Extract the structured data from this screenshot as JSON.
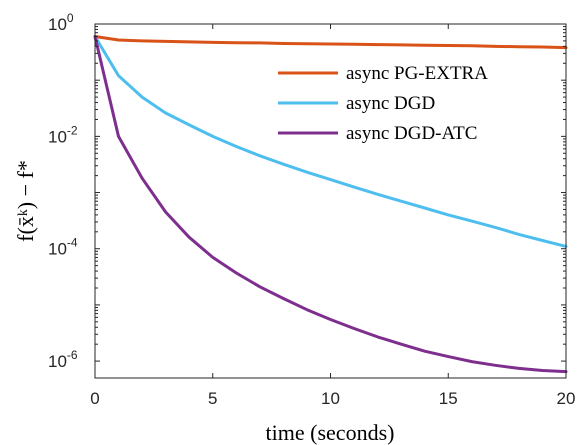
{
  "chart_data": {
    "type": "line",
    "xlabel": "time (seconds)",
    "ylabel": "f(x̄ᵏ) − f*",
    "xlim": [
      0,
      20
    ],
    "ylim": [
      5e-07,
      1
    ],
    "yscale": "log",
    "xticks": [
      0,
      5,
      10,
      15,
      20
    ],
    "yticks": [
      {
        "value": 1,
        "base": "10",
        "exp": "0"
      },
      {
        "value": 0.01,
        "base": "10",
        "exp": "-2"
      },
      {
        "value": 0.0001,
        "base": "10",
        "exp": "-4"
      },
      {
        "value": 1e-06,
        "base": "10",
        "exp": "-6"
      }
    ],
    "grid": false,
    "legend_position": "top-right",
    "series": [
      {
        "name": "async PG-EXTRA",
        "color": "#D95319",
        "x": [
          0,
          1,
          2,
          3,
          4,
          5,
          6,
          7,
          8,
          9,
          10,
          11,
          12,
          13,
          14,
          15,
          16,
          17,
          18,
          19,
          20
        ],
        "y": [
          0.6,
          0.52,
          0.5,
          0.49,
          0.48,
          0.47,
          0.465,
          0.46,
          0.45,
          0.445,
          0.44,
          0.435,
          0.43,
          0.425,
          0.42,
          0.415,
          0.41,
          0.4,
          0.395,
          0.39,
          0.38
        ]
      },
      {
        "name": "async DGD",
        "color": "#4DBEEE",
        "x": [
          0,
          1,
          2,
          3,
          4,
          5,
          6,
          7,
          8,
          9,
          10,
          11,
          12,
          13,
          14,
          15,
          16,
          17,
          18,
          19,
          20
        ],
        "y": [
          0.6,
          0.12,
          0.05,
          0.026,
          0.016,
          0.01,
          0.0066,
          0.0045,
          0.0032,
          0.0023,
          0.0017,
          0.00125,
          0.00093,
          0.0007,
          0.00053,
          0.0004,
          0.00031,
          0.00024,
          0.00018,
          0.00014,
          0.00011
        ]
      },
      {
        "name": "async DGD-ATC",
        "color": "#7E2F8E",
        "x": [
          0,
          1,
          2,
          3,
          4,
          5,
          6,
          7,
          8,
          9,
          10,
          11,
          12,
          13,
          14,
          15,
          16,
          17,
          18,
          19,
          20
        ],
        "y": [
          0.6,
          0.01,
          0.0018,
          0.00045,
          0.00016,
          7e-05,
          3.7e-05,
          2.1e-05,
          1.3e-05,
          8.2e-06,
          5.5e-06,
          3.8e-06,
          2.7e-06,
          2e-06,
          1.5e-06,
          1.2e-06,
          9.8e-07,
          8.4e-07,
          7.4e-07,
          6.8e-07,
          6.5e-07
        ]
      }
    ]
  }
}
